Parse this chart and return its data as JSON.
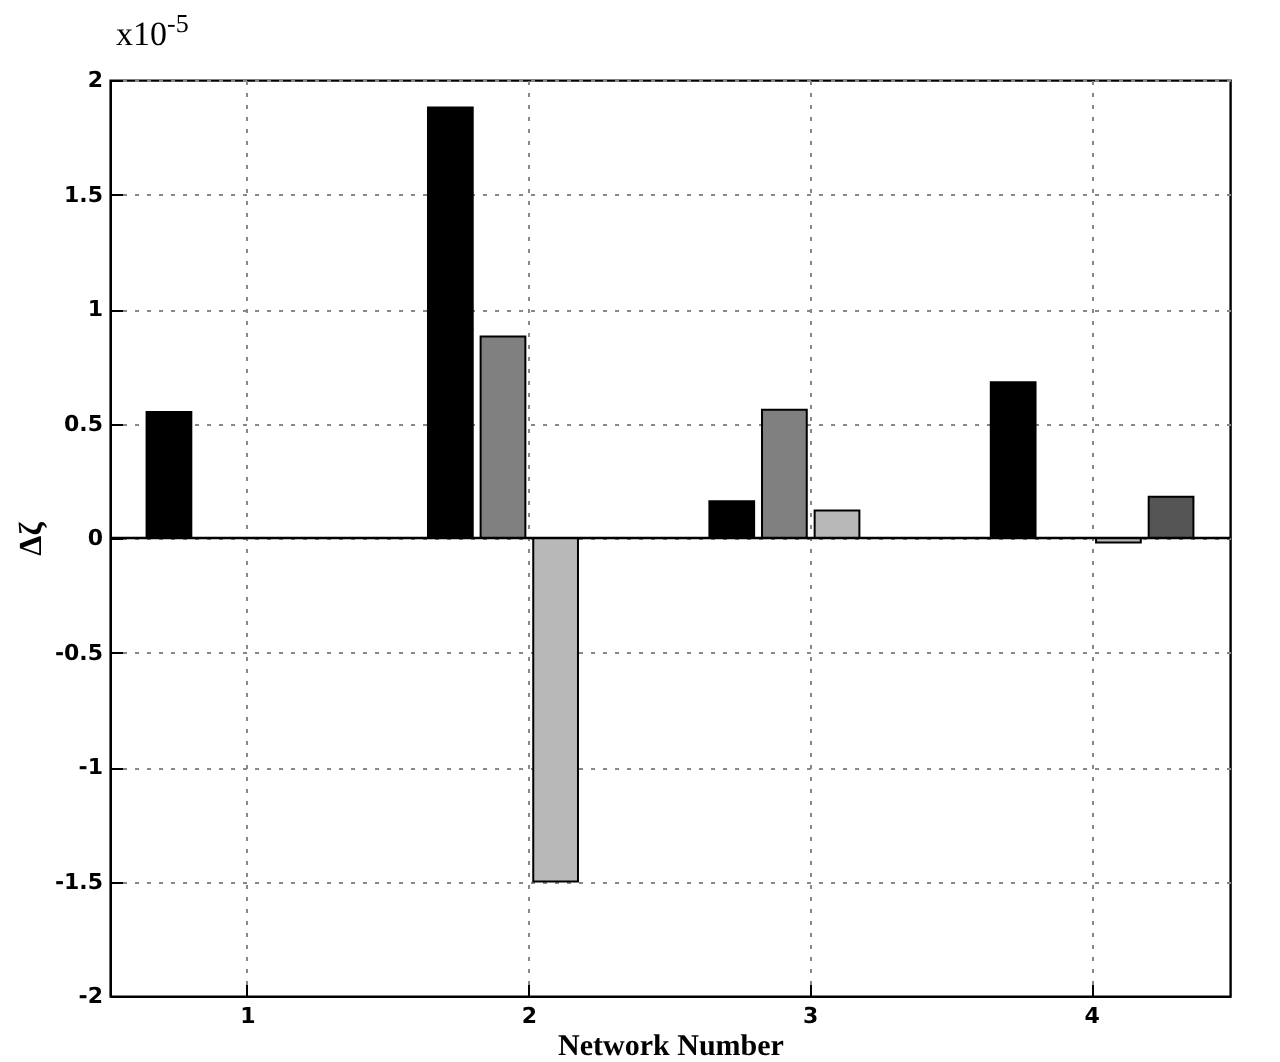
{
  "chart_data": {
    "type": "bar",
    "xlabel": "Network Number",
    "ylabel": "Δζ",
    "annotations": [
      "x10$^{-5}$"
    ],
    "categories": [
      "1",
      "2",
      "3",
      "4"
    ],
    "series": [
      {
        "color": "#000000",
        "values": [
          0.55,
          1.88,
          0.16,
          0.68
        ]
      },
      {
        "color": "#808080",
        "values": [
          null,
          0.88,
          0.56,
          null
        ]
      },
      {
        "color": "#b8b8b8",
        "values": [
          null,
          -1.5,
          0.12,
          -0.02
        ]
      },
      {
        "color": "#555555",
        "values": [
          null,
          null,
          null,
          0.18
        ]
      }
    ],
    "ylim": [
      -2,
      2
    ],
    "yticks": [
      -2,
      -1.5,
      -1,
      -0.5,
      0,
      0.5,
      1,
      1.5,
      2
    ],
    "ref_lines": [
      {
        "axis": "y",
        "value": 0,
        "color": "#000000"
      }
    ],
    "grid": true
  }
}
